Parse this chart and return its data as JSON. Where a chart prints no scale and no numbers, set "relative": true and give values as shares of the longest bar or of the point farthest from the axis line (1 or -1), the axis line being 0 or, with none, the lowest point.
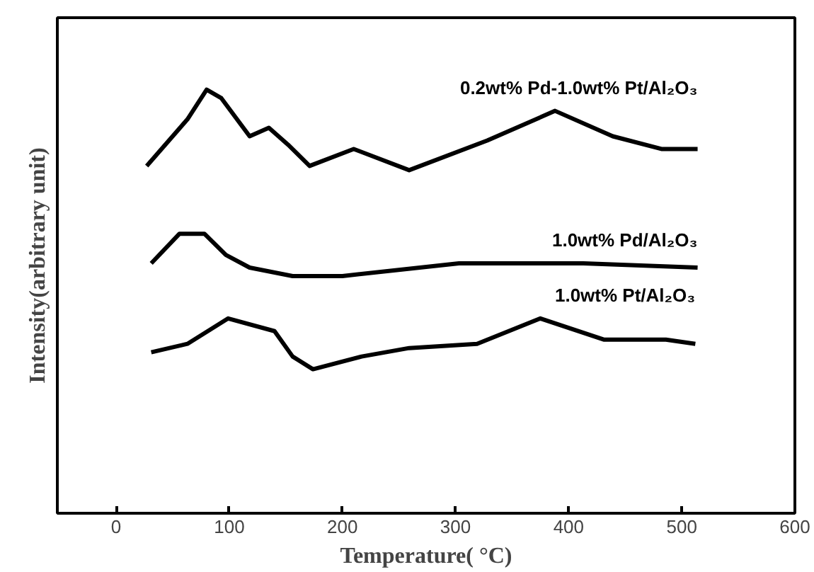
{
  "chart_data": {
    "type": "line",
    "relative": true,
    "xlabel": "Temperature( °C)",
    "ylabel": "Intensity(arbitrary unit)",
    "xlim": [
      -52,
      600
    ],
    "xticks": [
      0,
      100,
      200,
      300,
      400,
      500,
      600
    ],
    "grid": false,
    "legend": false,
    "line_style": "solid",
    "series": [
      {
        "name": "0.2wt% Pd-1.0wt% Pt/Al₂O₃",
        "color": "#000000",
        "x": [
          27,
          63,
          80,
          93,
          118,
          135,
          152,
          171,
          210,
          259,
          328,
          388,
          439,
          482,
          514
        ],
        "values": [
          0.82,
          0.93,
          1.0,
          0.98,
          0.89,
          0.91,
          0.87,
          0.82,
          0.86,
          0.81,
          0.88,
          0.95,
          0.89,
          0.86,
          0.86
        ]
      },
      {
        "name": "1.0wt% Pd/Al₂O₃",
        "color": "#000000",
        "x": [
          31,
          56,
          78,
          97,
          118,
          156,
          200,
          303,
          350,
          413,
          514
        ],
        "values": [
          0.59,
          0.66,
          0.66,
          0.61,
          0.58,
          0.56,
          0.56,
          0.59,
          0.59,
          0.59,
          0.58
        ]
      },
      {
        "name": "1.0wt% Pt/Al₂O₃",
        "color": "#000000",
        "x": [
          31,
          63,
          99,
          140,
          156,
          174,
          217,
          259,
          319,
          375,
          431,
          486,
          512
        ],
        "values": [
          0.38,
          0.4,
          0.46,
          0.43,
          0.37,
          0.34,
          0.37,
          0.39,
          0.4,
          0.46,
          0.41,
          0.41,
          0.4
        ]
      }
    ]
  }
}
